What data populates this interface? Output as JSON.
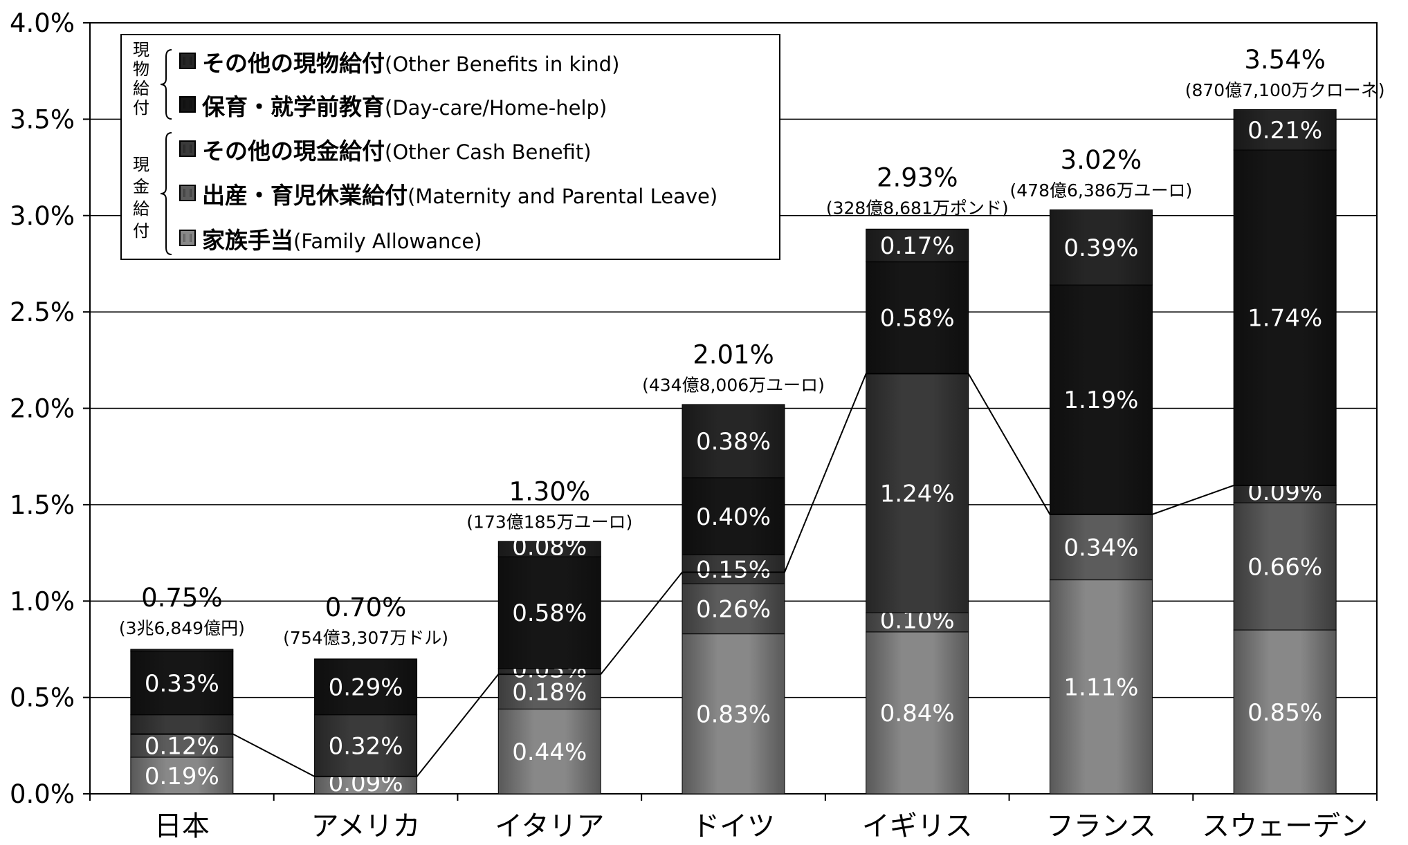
{
  "chart_data": {
    "type": "bar",
    "stacked": true,
    "categories": [
      "日本",
      "アメリカ",
      "イタリア",
      "ドイツ",
      "イギリス",
      "フランス",
      "スウェーデン"
    ],
    "y_ticks": [
      "0.0%",
      "0.5%",
      "1.0%",
      "1.5%",
      "2.0%",
      "2.5%",
      "3.0%",
      "3.5%",
      "4.0%"
    ],
    "ylim": [
      0,
      4
    ],
    "grid": true,
    "legend_position": "top-left",
    "legend_groups": [
      {
        "label": "現物給付",
        "series": [
          0,
          1
        ]
      },
      {
        "label": "現金給付",
        "series": [
          2,
          3,
          4
        ]
      }
    ],
    "series": [
      {
        "name": "その他の現物給付",
        "name_en": "(Other Benefits in kind)",
        "color": "#262626",
        "values": [
          0.01,
          0.0,
          0.08,
          0.38,
          0.17,
          0.39,
          0.21
        ],
        "labels": [
          "",
          "",
          "0.08%",
          "0.38%",
          "0.17%",
          "0.39%",
          "0.21%"
        ]
      },
      {
        "name": "保育・就学前教育",
        "name_en": "(Day-care/Home-help)",
        "color": "#161616",
        "values": [
          0.33,
          0.29,
          0.58,
          0.4,
          0.58,
          1.19,
          1.74
        ],
        "labels": [
          "0.33%",
          "0.29%",
          "0.58%",
          "0.40%",
          "0.58%",
          "1.19%",
          "1.74%"
        ]
      },
      {
        "name": "その他の現金給付",
        "name_en": "(Other Cash Benefit)",
        "color": "#3a3a3a",
        "values": [
          0.1,
          0.32,
          0.03,
          0.15,
          1.24,
          0.0,
          0.09
        ],
        "labels": [
          "",
          "0.32%",
          "0.03%",
          "0.15%",
          "1.24%",
          "",
          "0.09%"
        ]
      },
      {
        "name": "出産・育児休業給付",
        "name_en": "(Maternity and Parental Leave)",
        "color": "#5c5c5c",
        "values": [
          0.12,
          0.0,
          0.18,
          0.26,
          0.1,
          0.34,
          0.66
        ],
        "labels": [
          "0.12%",
          "",
          "0.18%",
          "0.26%",
          "0.10%",
          "0.34%",
          "0.66%"
        ]
      },
      {
        "name": "家族手当",
        "name_en": "(Family Allowance)",
        "color": "#888888",
        "values": [
          0.19,
          0.09,
          0.44,
          0.83,
          0.84,
          1.11,
          0.85
        ],
        "labels": [
          "0.19%",
          "0.09%",
          "0.44%",
          "0.83%",
          "0.84%",
          "1.11%",
          "0.85%"
        ]
      }
    ],
    "totals": [
      0.75,
      0.7,
      1.3,
      2.01,
      2.93,
      3.02,
      3.54
    ],
    "total_labels": [
      "0.75%",
      "0.70%",
      "1.30%",
      "2.01%",
      "2.93%",
      "3.02%",
      "3.54%"
    ],
    "local_amounts": [
      "(3兆6,849億円)",
      "(754億3,307万ドル)",
      "(173億185万ユーロ)",
      "(434億8,006万ユーロ)",
      "(328億8,681万ポンド)",
      "(478億6,386万ユーロ)",
      "(870億7,100万クローネ)"
    ],
    "line_series": {
      "values": [
        0.31,
        0.09,
        0.62,
        1.15,
        2.18,
        1.45,
        1.6
      ]
    }
  }
}
